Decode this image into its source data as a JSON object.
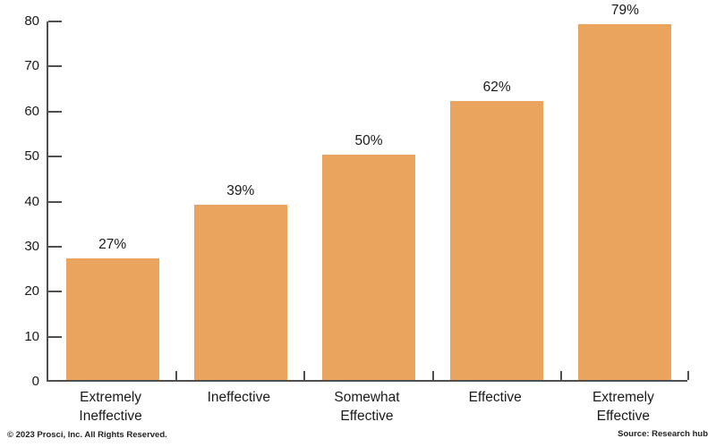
{
  "chart_data": {
    "type": "bar",
    "title": "",
    "xlabel": "",
    "ylabel": "",
    "categories": [
      "Extremely\nIneffective",
      "Ineffective",
      "Somewhat\nEffective",
      "Effective",
      "Extremely\nEffective"
    ],
    "values": [
      27,
      39,
      50,
      62,
      79
    ],
    "value_labels": [
      "27%",
      "39%",
      "50%",
      "62%",
      "79%"
    ],
    "ylim": [
      0,
      80
    ],
    "yticks": [
      0,
      10,
      20,
      30,
      40,
      50,
      60,
      70,
      80
    ],
    "grid": false,
    "legend_position": "none",
    "bar_color": "#EBA45E",
    "axis_color": "#4f4f4f",
    "text_color": "#1a1a1a"
  },
  "footer": {
    "copyright": "© 2023 Prosci, Inc. All Rights Reserved.",
    "source": "Source: Research hub"
  }
}
